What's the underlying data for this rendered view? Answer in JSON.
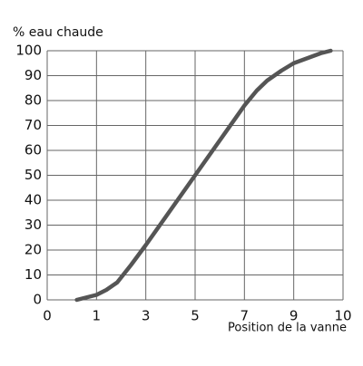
{
  "chart_data": {
    "type": "line",
    "y_label": "% eau chaude",
    "x_label": "Position de la vanne",
    "x": [
      0.6,
      1,
      1.4,
      1.84,
      2.4,
      3,
      4,
      5,
      6,
      7,
      7.5,
      7.92,
      8.5,
      9,
      9.55,
      9.75
    ],
    "series": [
      {
        "color": "#555555",
        "values": [
          0,
          2,
          4,
          7,
          14,
          22,
          36,
          50,
          64,
          78,
          84,
          88,
          92,
          95,
          99,
          100
        ]
      }
    ],
    "xlim": [
      0,
      10
    ],
    "xticks": [
      0,
      1,
      3,
      5,
      7,
      9,
      10
    ],
    "ylim": [
      0,
      100
    ],
    "yticks": [
      0,
      10,
      20,
      30,
      40,
      50,
      60,
      70,
      80,
      90,
      100
    ],
    "grid": true
  }
}
